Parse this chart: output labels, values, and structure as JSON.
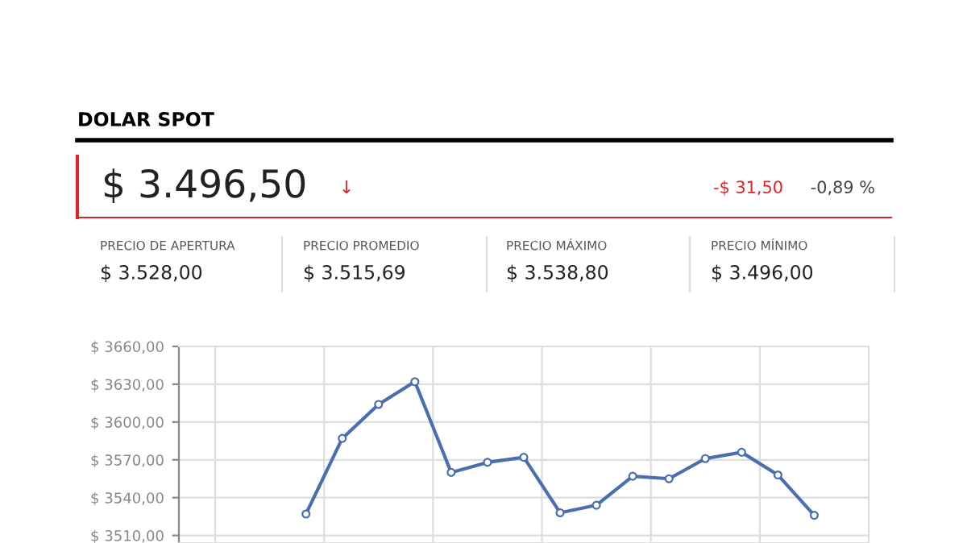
{
  "chart_data": {
    "type": "line",
    "title": "DOLAR SPOT",
    "annotations": [
      "$ 3.496,50",
      "↓",
      "-$ 31,50",
      "-0,89 %",
      "PRECIO DE APERTURA",
      "$ 3.528,00",
      "PRECIO PROMEDIO",
      "$ 3.515,69",
      "PRECIO MÁXIMO",
      "$ 3.538,80",
      "PRECIO MÍNIMO",
      "$ 3.496,00"
    ],
    "categories": [
      null,
      null,
      null,
      null,
      null,
      null,
      null,
      null,
      null,
      null,
      null,
      null,
      null,
      null,
      null,
      null,
      null,
      null,
      null
    ],
    "series": [
      {
        "color": "#4a6eb0",
        "values": [
          null,
          null,
          null,
          3527,
          3587,
          3614,
          3632,
          3560,
          3568,
          3572,
          3528,
          3534,
          3557,
          3555,
          3571,
          3576,
          3558,
          3526,
          null
        ]
      }
    ],
    "ylim": [
      3504,
      3660
    ],
    "yticks": [
      {
        "value": 3510,
        "label": "$ 3510,00"
      },
      {
        "value": 3540,
        "label": "$ 3540,00"
      },
      {
        "value": 3570,
        "label": "$ 3570,00"
      },
      {
        "value": 3600,
        "label": "$ 3600,00"
      },
      {
        "value": 3630,
        "label": "$ 3630,00"
      },
      {
        "value": 3660,
        "label": "$ 3660,00"
      }
    ],
    "grid": true,
    "marker": "circle",
    "legend": false
  }
}
